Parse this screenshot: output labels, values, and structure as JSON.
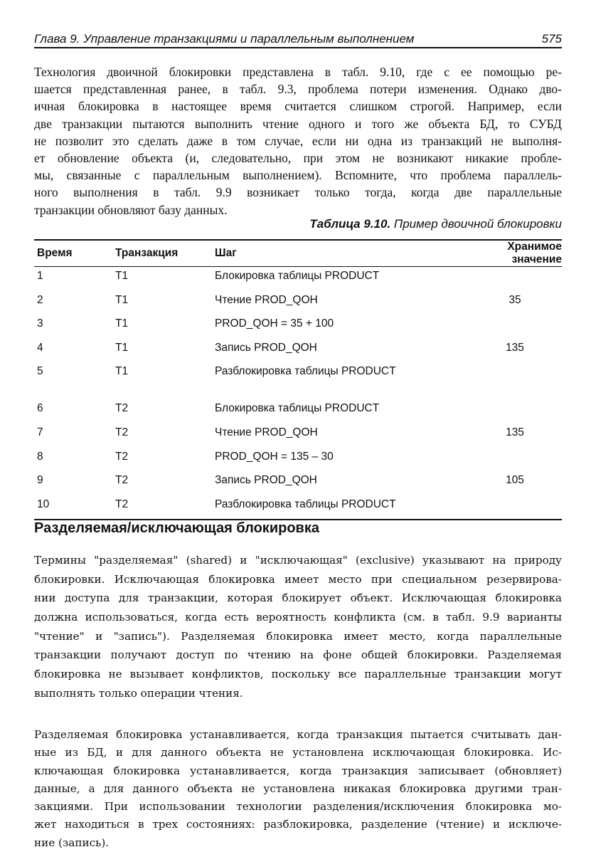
{
  "header": {
    "title": "Глава 9. Управление транзакциями и параллельным выполнением",
    "page_number": "575"
  },
  "intro_lines": [
    "Технология двоичной блокировки представлена в табл. 9.10, где с ее помощью ре-",
    "шается представленная ранее, в табл. 9.3, проблема потери изменения. Однако дво-",
    "ичная блокировка в настоящее время считается слишком строгой. Например, если",
    "две транзакции пытаются выполнить чтение одного и того же объекта БД, то СУБД",
    "не позволит это сделать даже в том случае, если ни одна из транзакций не выполня-",
    "ет обновление объекта (и, следовательно, при этом не возникают никакие пробле-",
    "мы, связанные с параллельным выполнением). Вспомните, что проблема параллель-",
    "ного выполнения в табл. 9.9 возникает только тогда, когда две параллельные",
    "транзакции обновляют базу данных."
  ],
  "table": {
    "caption_label": "Таблица 9.10.",
    "caption_text": " Пример двоичной блокировки",
    "columns": [
      "Время",
      "Транзакция",
      "Шаг",
      "Хранимое значение"
    ],
    "rows": [
      [
        "1",
        "T1",
        "Блокировка таблицы PRODUCT",
        ""
      ],
      [
        "2",
        "T1",
        "Чтение PROD_QOH",
        "35"
      ],
      [
        "3",
        "T1",
        "PROD_QOH = 35 + 100",
        ""
      ],
      [
        "4",
        "T1",
        "Запись PROD_QOH",
        "135"
      ],
      [
        "5",
        "T1",
        "Разблокировка таблицы PRODUCT",
        ""
      ],
      [
        "6",
        "T2",
        "Блокировка таблицы PRODUCT",
        ""
      ],
      [
        "7",
        "T2",
        "Чтение PROD_QOH",
        "135"
      ],
      [
        "8",
        "T2",
        "PROD_QOH = 135 – 30",
        ""
      ],
      [
        "9",
        "T2",
        "Запись PROD_QOH",
        "105"
      ],
      [
        "10",
        "T2",
        "Разблокировка таблицы PRODUCT",
        ""
      ]
    ]
  },
  "section_title": "Разделяемая/исключающая блокировка",
  "para2_lines": [
    "Термины \"разделяемая\" (shared) и \"исключающая\" (exclusive) указывают на природу",
    "блокировки. Исключающая блокировка имеет место при специальном резервирова-",
    "нии доступа для транзакции, которая блокирует объект. Исключающая блокировка",
    "должна использоваться, когда есть вероятность конфликта (см. в табл. 9.9 варианты",
    "\"чтение\" и \"запись\"). Разделяемая блокировка имеет место, когда параллельные",
    "транзакции получают доступ по чтению на фоне общей блокировки. Разделяемая",
    "блокировка не вызывает конфликтов, поскольку все параллельные транзакции могут",
    "выполнять только операции чтения."
  ],
  "para3_lines": [
    "Разделяемая блокировка устанавливается, когда транзакция пытается считывать дан-",
    "ные из БД, и для данного объекта не установлена исключающая блокировка. Ис-",
    "ключающая блокировка устанавливается, когда транзакция записывает (обновляет)",
    "данные, а для данного объекта не установлена никакая блокировка другими тран-",
    "закциями. При использовании технологии разделения/исключения блокировка мо-",
    "жет находиться в трех состояниях: разблокировка, разделение (чтение) и исключе-",
    "ние (запись)."
  ]
}
